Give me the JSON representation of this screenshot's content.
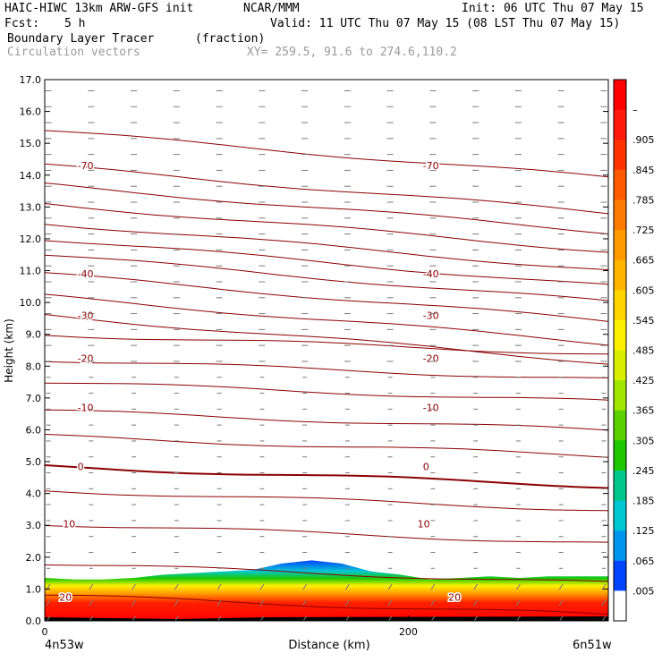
{
  "header": {
    "model": "HAIC-HIWC 13km ARW-GFS init",
    "org": "NCAR/MMM",
    "init": "Init: 06 UTC Thu 07 May 15",
    "fcst_label": "Fcst:",
    "fcst_value": "5 h",
    "valid": "Valid: 11 UTC Thu 07 May 15 (08 LST Thu 07 May 15)",
    "field_name": "Boundary Layer Tracer",
    "field_units": "(fraction)",
    "overlay_name": "Circulation vectors",
    "xy_range": "XY= 259.5, 91.6 to 274.6,110.2"
  },
  "chart_data": {
    "type": "heatmap",
    "title": "Boundary Layer Tracer",
    "ylabel": "Height (km)",
    "xlabel": "Distance (km)",
    "xlim": [
      0,
      310
    ],
    "ylim": [
      0,
      17
    ],
    "y_ticks": [
      "0.0",
      "1.0",
      "2.0",
      "3.0",
      "4.0",
      "5.0",
      "6.0",
      "7.0",
      "8.0",
      "9.0",
      "10.0",
      "11.0",
      "12.0",
      "13.0",
      "14.0",
      "15.0",
      "16.0",
      "17.0"
    ],
    "x_ticks": [
      0,
      200
    ],
    "x_endpoints": {
      "left": "4n53w",
      "right": "6n51w"
    },
    "colorbar": {
      "labels": [
        "–",
        ".905",
        ".845",
        ".785",
        ".725",
        ".665",
        ".605",
        ".545",
        ".485",
        ".425",
        ".365",
        ".305",
        ".245",
        ".185",
        ".125",
        ".065",
        ".005"
      ],
      "colors": [
        "#ff0000",
        "#ff1a0d",
        "#ff3300",
        "#ff5a00",
        "#ff7a00",
        "#ff9a00",
        "#ffb400",
        "#ffd400",
        "#fff000",
        "#d8f000",
        "#a0e600",
        "#5ad000",
        "#1ec800",
        "#00c88a",
        "#00c8d2",
        "#0096f0",
        "#0044ff",
        "#ffffff"
      ]
    },
    "tracer_top_km": [
      1.35,
      1.3,
      1.3,
      1.35,
      1.45,
      1.5,
      1.55,
      1.6,
      1.8,
      1.9,
      1.8,
      1.55,
      1.45,
      1.3,
      1.35,
      1.4,
      1.35,
      1.4,
      1.4,
      1.4
    ],
    "contour_labels": [
      {
        "value": "-70",
        "x": [
          18,
          208
        ],
        "y": 14.3
      },
      {
        "value": "-40",
        "x": [
          18,
          208
        ],
        "y": 10.9
      },
      {
        "value": "-30",
        "x": [
          18,
          208
        ],
        "y": 9.6
      },
      {
        "value": "-20",
        "x": [
          18,
          208
        ],
        "y": 8.25
      },
      {
        "value": "-10",
        "x": [
          18,
          208
        ],
        "y": 6.7
      },
      {
        "value": "0",
        "x": [
          18,
          208
        ],
        "y": 4.85
      },
      {
        "value": "10",
        "x": [
          10,
          205
        ],
        "y": 3.05
      },
      {
        "value": "20",
        "x": [
          8,
          222
        ],
        "y": 0.75
      }
    ]
  }
}
